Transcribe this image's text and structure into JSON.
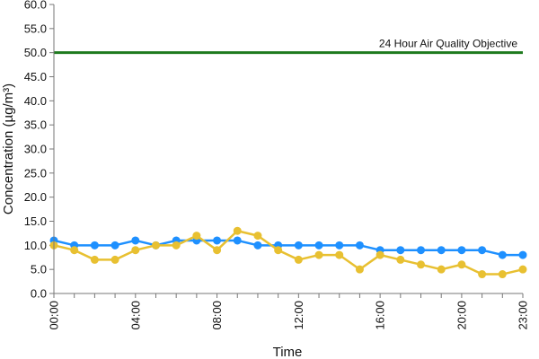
{
  "chart_data": {
    "type": "line",
    "xlabel": "Time",
    "ylabel": "Concentration (µg/m³)",
    "ylim": [
      0,
      60
    ],
    "y_ticks": [
      "0.0",
      "5.0",
      "10.0",
      "15.0",
      "20.0",
      "25.0",
      "30.0",
      "35.0",
      "40.0",
      "45.0",
      "50.0",
      "55.0",
      "60.0"
    ],
    "x": [
      "00:00",
      "01:00",
      "02:00",
      "03:00",
      "04:00",
      "05:00",
      "06:00",
      "07:00",
      "08:00",
      "09:00",
      "10:00",
      "11:00",
      "12:00",
      "13:00",
      "14:00",
      "15:00",
      "16:00",
      "17:00",
      "18:00",
      "19:00",
      "20:00",
      "21:00",
      "22:00",
      "23:00"
    ],
    "x_tick_labels": [
      "00:00",
      "04:00",
      "08:00",
      "12:00",
      "16:00",
      "20:00",
      "23:00"
    ],
    "grid": false,
    "series": [
      {
        "color": "#1e90ff",
        "values": [
          11,
          10,
          10,
          10,
          11,
          10,
          11,
          11,
          11,
          11,
          10,
          10,
          10,
          10,
          10,
          10,
          9,
          9,
          9,
          9,
          9,
          9,
          8,
          8
        ]
      },
      {
        "color": "#e8c031",
        "values": [
          10,
          9,
          7,
          7,
          9,
          10,
          10,
          12,
          9,
          13,
          12,
          9,
          7,
          8,
          8,
          5,
          8,
          7,
          6,
          5,
          6,
          4,
          4,
          5
        ]
      }
    ],
    "reference_line": {
      "label": "24 Hour Air Quality Objective",
      "value": 50,
      "color": "#1e7a1e"
    }
  }
}
